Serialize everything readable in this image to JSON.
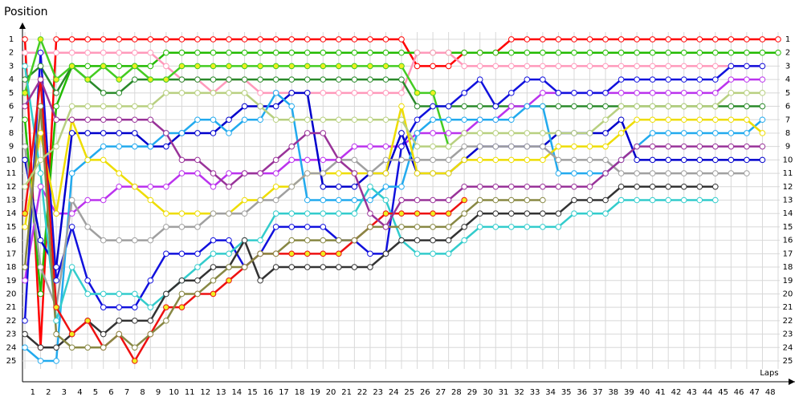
{
  "chart_data": {
    "type": "line",
    "title": "Position",
    "x_label": "Laps",
    "x": [
      0,
      1,
      2,
      3,
      4,
      5,
      6,
      7,
      8,
      9,
      10,
      11,
      12,
      13,
      14,
      15,
      16,
      17,
      18,
      19,
      20,
      21,
      22,
      23,
      24,
      25,
      26,
      27,
      28,
      29,
      30,
      31,
      32,
      33,
      34,
      35,
      36,
      37,
      38,
      39,
      40,
      41,
      42,
      43,
      44,
      45,
      46,
      47,
      48
    ],
    "xlim": [
      0,
      48
    ],
    "xticks": [
      1,
      2,
      3,
      4,
      5,
      6,
      7,
      8,
      9,
      10,
      11,
      12,
      13,
      14,
      15,
      16,
      17,
      18,
      19,
      20,
      21,
      22,
      23,
      24,
      25,
      26,
      27,
      28,
      29,
      30,
      31,
      32,
      33,
      34,
      35,
      36,
      37,
      38,
      39,
      40,
      41,
      42,
      43,
      44,
      45,
      46,
      47,
      48
    ],
    "ylim": [
      1,
      25
    ],
    "y_inverted": true,
    "yticks": [
      1,
      2,
      3,
      4,
      5,
      6,
      7,
      8,
      9,
      10,
      11,
      12,
      13,
      14,
      15,
      16,
      17,
      18,
      19,
      20,
      21,
      22,
      23,
      24,
      25
    ],
    "grid": true,
    "series": [
      {
        "color": "#ff0000",
        "values": [
          1,
          24,
          1,
          1,
          1,
          1,
          1,
          1,
          1,
          1,
          1,
          1,
          1,
          1,
          1,
          1,
          1,
          1,
          1,
          1,
          1,
          1,
          1,
          1,
          1,
          3,
          3,
          3,
          2,
          2,
          2,
          1,
          1,
          1,
          1,
          1,
          1,
          1,
          1,
          1,
          1,
          1,
          1,
          1,
          1,
          1,
          1,
          1,
          1
        ]
      },
      {
        "color": "#22bb00",
        "values": [
          7,
          20,
          6,
          3,
          3,
          3,
          3,
          3,
          3,
          2,
          2,
          2,
          2,
          2,
          2,
          2,
          2,
          2,
          2,
          2,
          2,
          2,
          2,
          2,
          2,
          2,
          2,
          2,
          2,
          2,
          2,
          2,
          2,
          2,
          2,
          2,
          2,
          2,
          2,
          2,
          2,
          2,
          2,
          2,
          2,
          2,
          2,
          2,
          2
        ]
      },
      {
        "color": "#ff99bb",
        "values": [
          2,
          2,
          2,
          2,
          2,
          2,
          2,
          2,
          2,
          3,
          4,
          4,
          5,
          4,
          4,
          5,
          5,
          5,
          5,
          5,
          5,
          5,
          5,
          5,
          5,
          2,
          2,
          2,
          3,
          3,
          3,
          3,
          3,
          3,
          3,
          3,
          3,
          3,
          3,
          3,
          3,
          3,
          3,
          3,
          3,
          3,
          3,
          3,
          null
        ]
      },
      {
        "color": "#2a8a2a",
        "values": [
          4,
          3,
          5,
          3,
          4,
          5,
          5,
          4,
          4,
          4,
          4,
          4,
          4,
          4,
          4,
          4,
          4,
          4,
          4,
          4,
          4,
          4,
          4,
          4,
          4,
          6,
          6,
          6,
          6,
          6,
          6,
          6,
          6,
          6,
          6,
          6,
          6,
          6,
          6,
          6,
          6,
          6,
          6,
          6,
          6,
          6,
          6,
          6,
          null
        ]
      },
      {
        "color": "#44cc22",
        "marker_fill": "#eeee22",
        "values": [
          5,
          1,
          4,
          3,
          4,
          3,
          4,
          3,
          4,
          4,
          3,
          3,
          3,
          3,
          3,
          3,
          3,
          3,
          3,
          3,
          3,
          3,
          3,
          3,
          3,
          5,
          5,
          9,
          null,
          null,
          null,
          null,
          null,
          null,
          null,
          null,
          null,
          null,
          null,
          null,
          null,
          null,
          null,
          null,
          null,
          null,
          null,
          null,
          null
        ]
      },
      {
        "color": "#bb33ee",
        "values": [
          19,
          12,
          14,
          14,
          13,
          13,
          12,
          12,
          12,
          12,
          11,
          11,
          12,
          11,
          11,
          11,
          11,
          10,
          10,
          10,
          10,
          9,
          9,
          9,
          9,
          8,
          8,
          8,
          8,
          7,
          7,
          6,
          6,
          5,
          5,
          5,
          5,
          5,
          5,
          5,
          5,
          5,
          5,
          5,
          5,
          4,
          4,
          4,
          null
        ]
      },
      {
        "color": "#0000cc",
        "values": [
          10,
          16,
          18,
          8,
          8,
          8,
          8,
          8,
          9,
          9,
          8,
          8,
          8,
          7,
          6,
          6,
          6,
          5,
          5,
          12,
          12,
          12,
          11,
          11,
          8,
          11,
          11,
          11,
          10,
          9,
          9,
          9,
          9,
          9,
          8,
          8,
          8,
          8,
          7,
          10,
          10,
          10,
          10,
          10,
          10,
          10,
          10,
          10,
          null
        ]
      },
      {
        "color": "#1111dd",
        "values": [
          22,
          2,
          19,
          15,
          19,
          21,
          21,
          21,
          19,
          17,
          17,
          17,
          16,
          16,
          18,
          17,
          15,
          15,
          15,
          15,
          16,
          16,
          17,
          17,
          9,
          7,
          6,
          6,
          5,
          4,
          6,
          5,
          4,
          4,
          5,
          5,
          5,
          5,
          4,
          4,
          4,
          4,
          4,
          4,
          4,
          3,
          3,
          3,
          null
        ]
      },
      {
        "color": "#22aaee",
        "values": [
          24,
          25,
          25,
          11,
          10,
          9,
          9,
          9,
          9,
          8,
          8,
          7,
          7,
          8,
          7,
          7,
          5,
          6,
          13,
          13,
          13,
          13,
          13,
          12,
          12,
          8,
          7,
          7,
          7,
          7,
          7,
          7,
          6,
          6,
          11,
          11,
          11,
          11,
          10,
          9,
          8,
          8,
          8,
          8,
          8,
          8,
          8,
          7,
          null
        ]
      },
      {
        "color": "#eedd00",
        "values": [
          15,
          8,
          14,
          7,
          10,
          10,
          11,
          12,
          13,
          14,
          14,
          14,
          14,
          14,
          13,
          13,
          12,
          12,
          11,
          11,
          11,
          11,
          11,
          11,
          6,
          11,
          11,
          11,
          10,
          10,
          10,
          10,
          10,
          10,
          9,
          9,
          9,
          9,
          8,
          7,
          7,
          7,
          7,
          7,
          7,
          7,
          7,
          8,
          null
        ]
      },
      {
        "color": "#a0a0a0",
        "values": [
          9,
          18,
          21,
          13,
          15,
          16,
          16,
          16,
          16,
          15,
          15,
          15,
          14,
          14,
          14,
          13,
          13,
          12,
          11,
          11,
          10,
          10,
          11,
          10,
          10,
          10,
          10,
          10,
          9,
          9,
          9,
          9,
          9,
          9,
          10,
          10,
          10,
          10,
          11,
          11,
          11,
          11,
          11,
          11,
          11,
          11,
          11,
          null,
          null
        ]
      },
      {
        "color": "#33cccc",
        "values": [
          3,
          11,
          22,
          18,
          20,
          20,
          20,
          20,
          21,
          20,
          19,
          18,
          17,
          17,
          16,
          16,
          14,
          14,
          14,
          14,
          14,
          14,
          12,
          13,
          16,
          17,
          17,
          17,
          16,
          15,
          15,
          15,
          15,
          15,
          15,
          14,
          14,
          14,
          13,
          13,
          13,
          13,
          13,
          13,
          13,
          null,
          null,
          null,
          null
        ]
      },
      {
        "color": "#333333",
        "values": [
          23,
          24,
          24,
          23,
          22,
          23,
          22,
          22,
          22,
          20,
          19,
          19,
          18,
          18,
          16,
          19,
          18,
          18,
          18,
          18,
          18,
          18,
          18,
          17,
          16,
          16,
          16,
          16,
          15,
          14,
          14,
          14,
          14,
          14,
          14,
          13,
          13,
          13,
          12,
          12,
          12,
          12,
          12,
          12,
          12,
          null,
          null,
          null,
          null
        ]
      },
      {
        "color": "#ee1111",
        "marker_fill": "#eeee22",
        "values": [
          14,
          4,
          21,
          23,
          22,
          24,
          23,
          25,
          23,
          21,
          21,
          20,
          20,
          19,
          18,
          17,
          17,
          17,
          17,
          17,
          17,
          16,
          15,
          14,
          14,
          14,
          14,
          14,
          13,
          null,
          null,
          null,
          null,
          null,
          null,
          null,
          null,
          null,
          null,
          null,
          null,
          null,
          null,
          null,
          null,
          null,
          null,
          null,
          null
        ]
      },
      {
        "color": "#888844",
        "values": [
          18,
          6,
          23,
          24,
          24,
          24,
          23,
          24,
          23,
          22,
          20,
          20,
          19,
          18,
          18,
          17,
          17,
          16,
          16,
          16,
          16,
          16,
          15,
          15,
          15,
          15,
          15,
          15,
          14,
          13,
          13,
          13,
          13,
          13,
          null,
          null,
          null,
          null,
          null,
          null,
          null,
          null,
          null,
          null,
          null,
          null,
          null,
          null,
          null
        ]
      },
      {
        "color": "#993399",
        "values": [
          6,
          4,
          7,
          7,
          7,
          7,
          7,
          7,
          7,
          8,
          10,
          10,
          11,
          12,
          11,
          11,
          10,
          9,
          8,
          8,
          10,
          11,
          14,
          15,
          13,
          13,
          13,
          13,
          12,
          12,
          12,
          12,
          12,
          12,
          12,
          12,
          12,
          11,
          10,
          9,
          9,
          9,
          9,
          9,
          9,
          9,
          9,
          9,
          null
        ]
      },
      {
        "color": "#b8d080",
        "values": [
          12,
          10,
          9,
          6,
          6,
          6,
          6,
          6,
          6,
          5,
          5,
          5,
          5,
          5,
          5,
          6,
          7,
          7,
          7,
          7,
          7,
          7,
          7,
          7,
          7,
          9,
          9,
          9,
          8,
          8,
          8,
          8,
          8,
          8,
          8,
          8,
          8,
          7,
          6,
          6,
          6,
          6,
          6,
          6,
          6,
          5,
          5,
          5,
          null
        ]
      }
    ]
  }
}
